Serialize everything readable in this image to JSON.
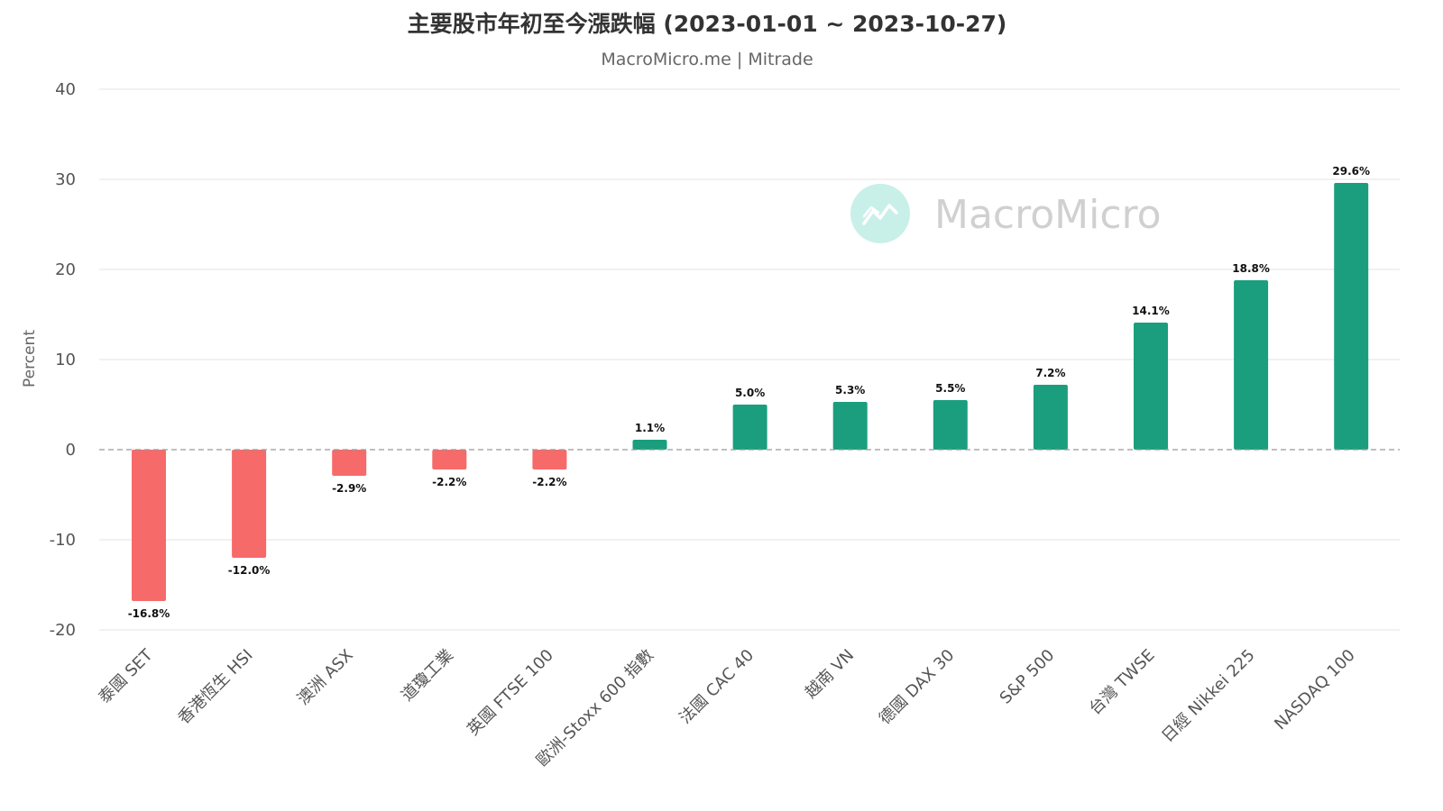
{
  "chart_data": {
    "type": "bar",
    "title": "主要股市年初至今漲跌幅 (2023-01-01 ~ 2023-10-27)",
    "subtitle": "MacroMicro.me | Mitrade",
    "ylabel": "Percent",
    "xlabel": "",
    "ylim": [
      -20,
      40
    ],
    "yticks": [
      40,
      30,
      20,
      10,
      0,
      -10,
      -20
    ],
    "grid": true,
    "zero_line": "dashed",
    "categories": [
      "泰國 SET",
      "香港恆生 HSI",
      "澳洲 ASX",
      "道瓊工業",
      "英國 FTSE 100",
      "歐洲-Stoxx 600 指數",
      "法國 CAC 40",
      "越南 VN",
      "德國 DAX 30",
      "S&P 500",
      "台灣 TWSE",
      "日經 Nikkei 225",
      "NASDAQ 100"
    ],
    "values": [
      -16.8,
      -12.0,
      -2.9,
      -2.2,
      -2.2,
      1.1,
      5.0,
      5.3,
      5.5,
      7.2,
      14.1,
      18.8,
      29.6
    ],
    "data_labels": [
      "-16.8%",
      "-12.0%",
      "-2.9%",
      "-2.2%",
      "-2.2%",
      "1.1%",
      "5.0%",
      "5.3%",
      "5.5%",
      "7.2%",
      "14.1%",
      "18.8%",
      "29.6%"
    ],
    "colors": {
      "positive": "#1a9e7e",
      "negative": "#f76a6a",
      "grid": "#e3e3e3",
      "zero_line": "#999999"
    }
  },
  "watermark": {
    "text": "MacroMicro",
    "icon": "macromicro-logo-icon",
    "color": "#d0d0d0",
    "icon_color": "#c8f0e8"
  }
}
